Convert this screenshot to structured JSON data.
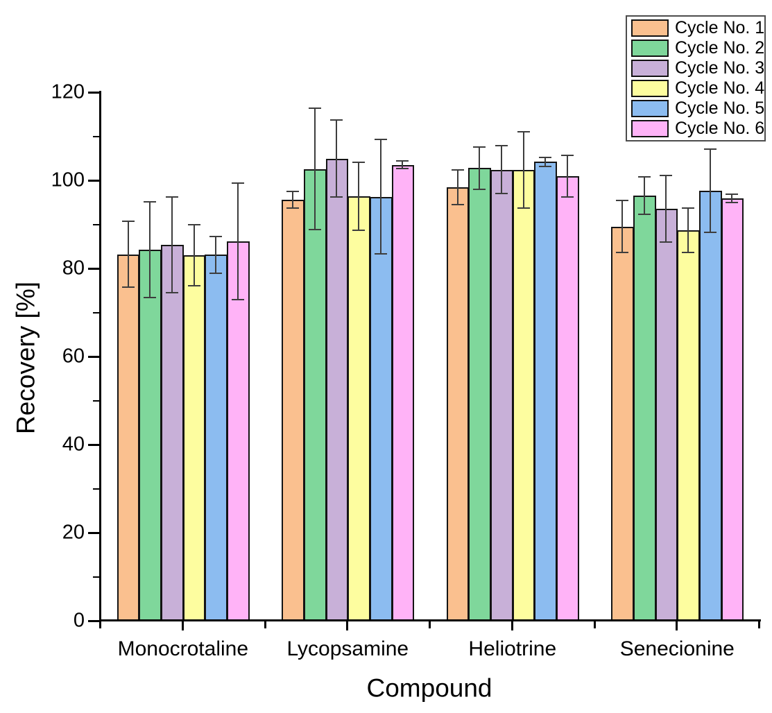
{
  "chart_data": {
    "type": "bar",
    "title": "",
    "xlabel": "Compound",
    "ylabel": "Recovery [%]",
    "ylim": [
      0,
      120
    ],
    "ytick_step": 20,
    "yminor_step": 10,
    "ytick_labels": [
      "0",
      "20",
      "40",
      "60",
      "80",
      "100",
      "120"
    ],
    "grid": false,
    "legend_position": "top-right",
    "axis_color": "#000000",
    "bar_border_color": "#141414",
    "error_bar_color": "#3d3d3d",
    "categories": [
      "Monocrotaline",
      "Lycopsamine",
      "Heliotrine",
      "Senecionine"
    ],
    "series": [
      {
        "name": "Cycle No. 1",
        "color": "#FAC08F",
        "values": [
          83.2,
          95.6,
          98.5,
          89.5
        ],
        "errors": [
          7.6,
          2.0,
          4.1,
          6.1
        ]
      },
      {
        "name": "Cycle No. 2",
        "color": "#7FD79B",
        "values": [
          84.3,
          102.6,
          102.8,
          96.6
        ],
        "errors": [
          11.0,
          14.0,
          5.0,
          4.4
        ]
      },
      {
        "name": "Cycle No. 3",
        "color": "#C8B0D8",
        "values": [
          85.4,
          104.9,
          102.4,
          93.6
        ],
        "errors": [
          11.0,
          8.9,
          5.6,
          7.7
        ]
      },
      {
        "name": "Cycle No. 4",
        "color": "#FDFD9F",
        "values": [
          83.0,
          96.4,
          102.4,
          88.7
        ],
        "errors": [
          7.1,
          7.9,
          8.8,
          5.2
        ]
      },
      {
        "name": "Cycle No. 5",
        "color": "#8CBCF0",
        "values": [
          83.1,
          96.3,
          104.2,
          97.7
        ],
        "errors": [
          4.3,
          13.1,
          1.2,
          9.6
        ]
      },
      {
        "name": "Cycle No. 6",
        "color": "#FFB3F7",
        "values": [
          86.2,
          103.5,
          100.9,
          95.9
        ],
        "errors": [
          13.4,
          1.0,
          4.9,
          1.1
        ]
      }
    ]
  }
}
